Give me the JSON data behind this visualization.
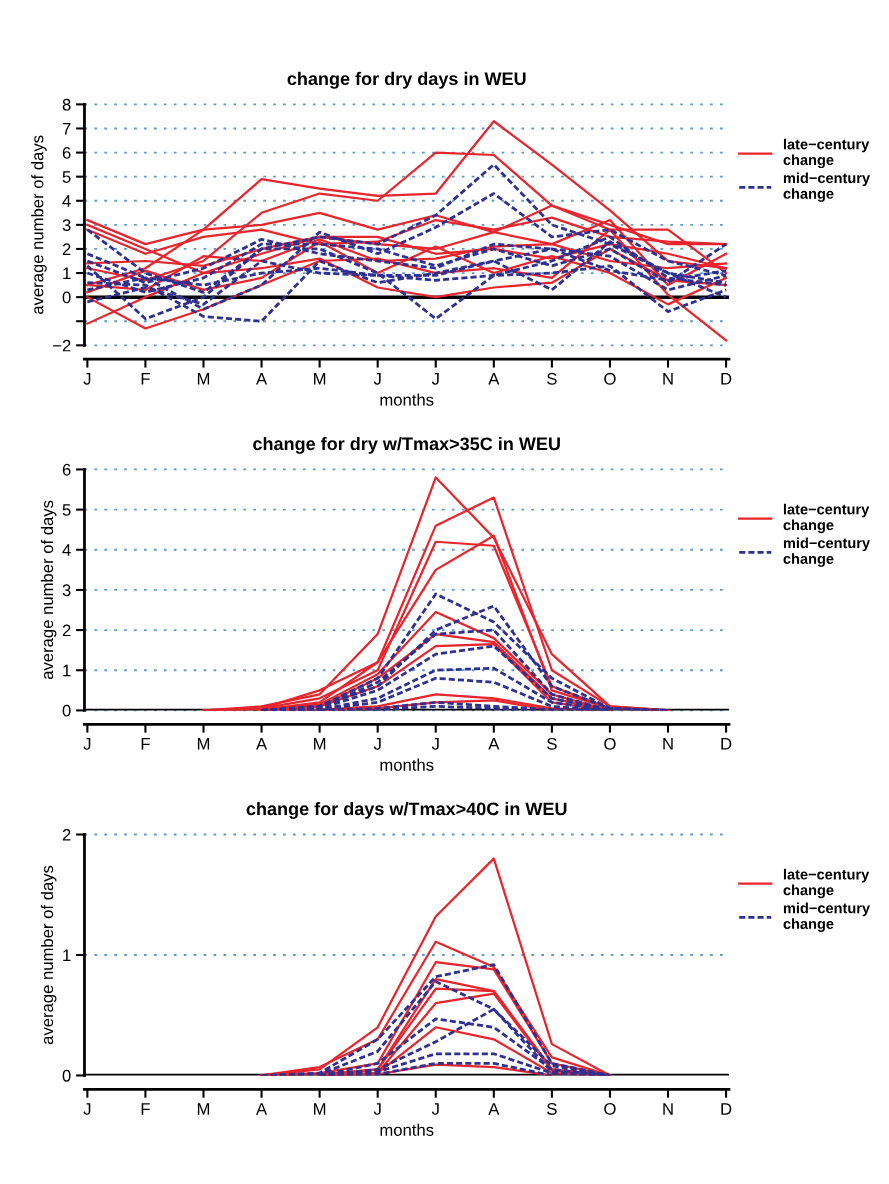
{
  "chart_data": [
    {
      "type": "line",
      "title": "change for dry days in WEU",
      "xlabel": "months",
      "ylabel": "average number of days",
      "categories": [
        "J",
        "F",
        "M",
        "A",
        "M",
        "J",
        "J",
        "A",
        "S",
        "O",
        "N",
        "D"
      ],
      "ylim": [
        -2,
        8
      ],
      "yticks": [
        -2,
        {
          "value": -1,
          "label": null
        },
        0,
        1,
        2,
        3,
        4,
        5,
        6,
        7,
        8
      ],
      "grid": "y",
      "legend": "right",
      "ref_lines": [
        {
          "axis": "y",
          "value": 0,
          "color": "#000000"
        }
      ],
      "series": [
        {
          "name": "late−century\nchange",
          "color": "#e8242c",
          "line_style": "solid",
          "values": [
            1.2,
            0.7,
            1.5,
            3.5,
            4.3,
            4.0,
            6.0,
            5.9,
            3.8,
            3.0,
            2.2,
            2.2
          ]
        },
        {
          "color": "#e8242c",
          "line_style": "solid",
          "values": [
            0.5,
            1.2,
            2.8,
            4.9,
            4.5,
            4.2,
            4.3,
            7.3,
            5.5,
            3.6,
            1.5,
            1.2
          ]
        },
        {
          "color": "#e8242c",
          "line_style": "solid",
          "values": [
            3.2,
            2.2,
            2.8,
            3.0,
            3.5,
            2.8,
            3.4,
            2.7,
            3.8,
            2.8,
            2.8,
            1.0
          ]
        },
        {
          "color": "#e8242c",
          "line_style": "solid",
          "values": [
            2.8,
            1.8,
            2.5,
            2.8,
            2.2,
            2.3,
            3.2,
            2.8,
            3.3,
            2.5,
            2.3,
            2.2
          ]
        },
        {
          "color": "#e8242c",
          "line_style": "solid",
          "values": [
            1.4,
            1.5,
            1.3,
            2.0,
            2.5,
            2.2,
            2.0,
            2.7,
            2.2,
            3.2,
            0.5,
            1.8
          ]
        },
        {
          "color": "#e8242c",
          "line_style": "solid",
          "values": [
            0.5,
            0.3,
            1.7,
            1.5,
            2.4,
            1.5,
            1.6,
            2.1,
            2.2,
            1.5,
            1.2,
            1.4
          ]
        },
        {
          "color": "#e8242c",
          "line_style": "solid",
          "values": [
            -1.1,
            0.0,
            1.0,
            1.2,
            1.6,
            0.4,
            0.0,
            0.4,
            0.6,
            2.0,
            0.7,
            0.5
          ]
        },
        {
          "color": "#e8242c",
          "line_style": "solid",
          "values": [
            0.0,
            -1.3,
            -0.5,
            0.5,
            1.5,
            1.6,
            1.0,
            1.2,
            0.8,
            2.8,
            0.1,
            -1.8
          ]
        },
        {
          "color": "#e8242c",
          "line_style": "solid",
          "values": [
            3.0,
            2.0,
            1.0,
            1.8,
            2.5,
            2.5,
            1.8,
            2.0,
            1.6,
            2.2,
            1.8,
            1.2
          ]
        },
        {
          "color": "#e8242c",
          "line_style": "solid",
          "values": [
            0.2,
            1.1,
            0.3,
            0.8,
            2.3,
            1.0,
            2.1,
            1.0,
            1.7,
            1.0,
            -0.3,
            0.8
          ]
        },
        {
          "name": "mid−century\nchange",
          "color": "#2e3192",
          "line_style": "dashed",
          "values": [
            2.8,
            1.0,
            0.2,
            2.0,
            2.5,
            2.2,
            3.4,
            5.5,
            3.0,
            2.2,
            1.0,
            0.6
          ]
        },
        {
          "color": "#2e3192",
          "line_style": "dashed",
          "values": [
            1.8,
            0.8,
            -0.5,
            0.5,
            2.7,
            1.8,
            2.9,
            4.3,
            2.5,
            2.8,
            1.5,
            0.9
          ]
        },
        {
          "color": "#2e3192",
          "line_style": "dashed",
          "values": [
            1.3,
            -0.9,
            0.0,
            2.0,
            2.0,
            1.0,
            -0.9,
            0.9,
            1.5,
            2.5,
            0.8,
            0.5
          ]
        },
        {
          "color": "#2e3192",
          "line_style": "dashed",
          "values": [
            0.6,
            0.5,
            -0.8,
            -1.0,
            1.5,
            0.6,
            1.0,
            1.5,
            2.0,
            1.7,
            0.3,
            0.9
          ]
        },
        {
          "color": "#2e3192",
          "line_style": "dashed",
          "values": [
            -0.2,
            0.4,
            -0.3,
            1.5,
            1.0,
            0.9,
            0.7,
            0.9,
            1.0,
            1.3,
            -0.6,
            0.3
          ]
        },
        {
          "color": "#2e3192",
          "line_style": "dashed",
          "values": [
            1.0,
            0.2,
            0.8,
            2.2,
            2.2,
            2.0,
            1.3,
            2.0,
            1.3,
            2.0,
            0.6,
            2.2
          ]
        },
        {
          "color": "#2e3192",
          "line_style": "dashed",
          "values": [
            0.3,
            0.8,
            0.5,
            1.0,
            1.2,
            0.9,
            0.9,
            1.5,
            0.3,
            2.3,
            1.0,
            0.0
          ]
        },
        {
          "color": "#2e3192",
          "line_style": "dashed",
          "values": [
            1.5,
            0.6,
            1.2,
            2.4,
            1.8,
            1.5,
            1.2,
            2.2,
            2.0,
            1.1,
            0.7,
            1.1
          ]
        }
      ]
    },
    {
      "type": "line",
      "title": "change for dry w/Tmax>35C in WEU",
      "xlabel": "months",
      "ylabel": "average number of days",
      "categories": [
        "J",
        "F",
        "M",
        "A",
        "M",
        "J",
        "J",
        "A",
        "S",
        "O",
        "N",
        "D"
      ],
      "ylim": [
        0,
        6
      ],
      "yticks": [
        0,
        1,
        2,
        3,
        4,
        5,
        6
      ],
      "grid": "y",
      "legend": "right",
      "ref_lines": [
        {
          "axis": "y",
          "value": 0,
          "color": "#000000"
        }
      ],
      "series": [
        {
          "name": "late−century\nchange",
          "color": "#e8242c",
          "line_style": "solid",
          "values": [
            null,
            null,
            0,
            0.1,
            0.4,
            1.9,
            5.8,
            4.3,
            1.4,
            0.1,
            0,
            null
          ]
        },
        {
          "color": "#e8242c",
          "line_style": "solid",
          "values": [
            null,
            null,
            0,
            0.05,
            0.5,
            1.2,
            4.6,
            5.3,
            1.0,
            0.1,
            0,
            null
          ]
        },
        {
          "color": "#e8242c",
          "line_style": "solid",
          "values": [
            null,
            null,
            0,
            0.05,
            0.3,
            1.0,
            4.2,
            4.1,
            0.6,
            0.05,
            0,
            null
          ]
        },
        {
          "color": "#e8242c",
          "line_style": "solid",
          "values": [
            null,
            null,
            0,
            0.02,
            0.2,
            1.2,
            3.5,
            4.35,
            0.5,
            0.05,
            0,
            null
          ]
        },
        {
          "color": "#e8242c",
          "line_style": "solid",
          "values": [
            null,
            null,
            null,
            0,
            0.15,
            0.9,
            2.45,
            1.8,
            0.4,
            0,
            null,
            null
          ]
        },
        {
          "color": "#e8242c",
          "line_style": "solid",
          "values": [
            null,
            null,
            null,
            0,
            0.1,
            0.8,
            1.9,
            1.7,
            0.3,
            0,
            null,
            null
          ]
        },
        {
          "color": "#e8242c",
          "line_style": "solid",
          "values": [
            null,
            null,
            null,
            0,
            0.1,
            0.6,
            1.6,
            1.65,
            0.2,
            0,
            null,
            null
          ]
        },
        {
          "color": "#e8242c",
          "line_style": "solid",
          "values": [
            null,
            null,
            null,
            0,
            0.02,
            0.1,
            0.4,
            0.3,
            0.05,
            0,
            null,
            null
          ]
        },
        {
          "color": "#e8242c",
          "line_style": "solid",
          "values": [
            null,
            null,
            null,
            null,
            0,
            0.05,
            0.2,
            0.25,
            0,
            null,
            null,
            null
          ]
        },
        {
          "name": "mid−century\nchange",
          "color": "#2e3192",
          "line_style": "dashed",
          "values": [
            null,
            null,
            null,
            0,
            0.1,
            0.8,
            2.9,
            2.2,
            0.8,
            0.05,
            0,
            null
          ]
        },
        {
          "color": "#2e3192",
          "line_style": "dashed",
          "values": [
            null,
            null,
            null,
            0,
            0.1,
            0.6,
            2.0,
            2.6,
            0.6,
            0.05,
            0,
            null
          ]
        },
        {
          "color": "#2e3192",
          "line_style": "dashed",
          "values": [
            null,
            null,
            null,
            0,
            0.05,
            0.7,
            1.9,
            2.0,
            0.4,
            0,
            null,
            null
          ]
        },
        {
          "color": "#2e3192",
          "line_style": "dashed",
          "values": [
            null,
            null,
            null,
            0,
            0.05,
            0.5,
            1.4,
            1.6,
            0.3,
            0,
            null,
            null
          ]
        },
        {
          "color": "#2e3192",
          "line_style": "dashed",
          "values": [
            null,
            null,
            null,
            0,
            0.02,
            0.3,
            1.0,
            1.05,
            0.2,
            0,
            null,
            null
          ]
        },
        {
          "color": "#2e3192",
          "line_style": "dashed",
          "values": [
            null,
            null,
            null,
            0,
            0.02,
            0.2,
            0.8,
            0.7,
            0.1,
            0,
            null,
            null
          ]
        },
        {
          "color": "#2e3192",
          "line_style": "dashed",
          "values": [
            null,
            null,
            null,
            null,
            0,
            0.05,
            0.2,
            0.1,
            0.02,
            0,
            null,
            null
          ]
        },
        {
          "color": "#2e3192",
          "line_style": "dashed",
          "values": [
            null,
            null,
            null,
            null,
            0,
            0.02,
            0.1,
            0.05,
            0,
            null,
            null,
            null
          ]
        }
      ]
    },
    {
      "type": "line",
      "title": "change for days w/Tmax>40C in WEU",
      "xlabel": "months",
      "ylabel": "average number of days",
      "categories": [
        "J",
        "F",
        "M",
        "A",
        "M",
        "J",
        "J",
        "A",
        "S",
        "O",
        "N",
        "D"
      ],
      "ylim": [
        0,
        2
      ],
      "yticks": [
        0,
        1,
        2
      ],
      "legend": "right",
      "ref_lines": [
        {
          "axis": "y",
          "value": 0,
          "color": "#000000"
        },
        {
          "axis": "y",
          "value": 1,
          "color": "#5b9bc8",
          "line_style": "dotted"
        },
        {
          "axis": "y",
          "value": 2,
          "color": "#5b9bc8",
          "line_style": "dotted"
        }
      ],
      "series": [
        {
          "name": "late−century\nchange",
          "color": "#e8242c",
          "line_style": "solid",
          "values": [
            null,
            null,
            null,
            0,
            0.05,
            0.4,
            1.32,
            1.8,
            0.26,
            0,
            null,
            null
          ]
        },
        {
          "color": "#e8242c",
          "line_style": "solid",
          "values": [
            null,
            null,
            null,
            0,
            0.07,
            0.3,
            1.11,
            0.9,
            0.15,
            0,
            null,
            null
          ]
        },
        {
          "color": "#e8242c",
          "line_style": "solid",
          "values": [
            null,
            null,
            null,
            0,
            0.02,
            0.1,
            0.94,
            0.88,
            0.1,
            0,
            null,
            null
          ]
        },
        {
          "color": "#e8242c",
          "line_style": "solid",
          "values": [
            null,
            null,
            null,
            0,
            0.01,
            0.05,
            0.8,
            0.7,
            0.05,
            0,
            null,
            null
          ]
        },
        {
          "color": "#e8242c",
          "line_style": "solid",
          "values": [
            null,
            null,
            null,
            null,
            0,
            0.05,
            0.72,
            0.7,
            0.05,
            0,
            null,
            null
          ]
        },
        {
          "color": "#e8242c",
          "line_style": "solid",
          "values": [
            null,
            null,
            null,
            null,
            0,
            0.02,
            0.6,
            0.68,
            0.04,
            0,
            null,
            null
          ]
        },
        {
          "color": "#e8242c",
          "line_style": "solid",
          "values": [
            null,
            null,
            null,
            null,
            0,
            0.02,
            0.4,
            0.3,
            0.02,
            0,
            null,
            null
          ]
        },
        {
          "color": "#e8242c",
          "line_style": "solid",
          "values": [
            null,
            null,
            null,
            null,
            0,
            0.01,
            0.09,
            0.07,
            0,
            null,
            null,
            null
          ]
        },
        {
          "name": "mid−century\nchange",
          "color": "#2e3192",
          "line_style": "dashed",
          "values": [
            null,
            null,
            null,
            0,
            0.02,
            0.3,
            0.82,
            0.92,
            0.1,
            0,
            null,
            null
          ]
        },
        {
          "color": "#2e3192",
          "line_style": "dashed",
          "values": [
            null,
            null,
            null,
            0,
            0.01,
            0.2,
            0.78,
            0.55,
            0.08,
            0,
            null,
            null
          ]
        },
        {
          "color": "#2e3192",
          "line_style": "dashed",
          "values": [
            null,
            null,
            null,
            null,
            0,
            0.1,
            0.47,
            0.4,
            0.05,
            0,
            null,
            null
          ]
        },
        {
          "color": "#2e3192",
          "line_style": "dashed",
          "values": [
            null,
            null,
            null,
            null,
            0,
            0.05,
            0.28,
            0.55,
            0.03,
            0,
            null,
            null
          ]
        },
        {
          "color": "#2e3192",
          "line_style": "dashed",
          "values": [
            null,
            null,
            null,
            null,
            0,
            0.03,
            0.18,
            0.18,
            0.02,
            0,
            null,
            null
          ]
        },
        {
          "color": "#2e3192",
          "line_style": "dashed",
          "values": [
            null,
            null,
            null,
            null,
            0,
            0.01,
            0.1,
            0.1,
            0,
            null,
            null,
            null
          ]
        }
      ]
    }
  ]
}
